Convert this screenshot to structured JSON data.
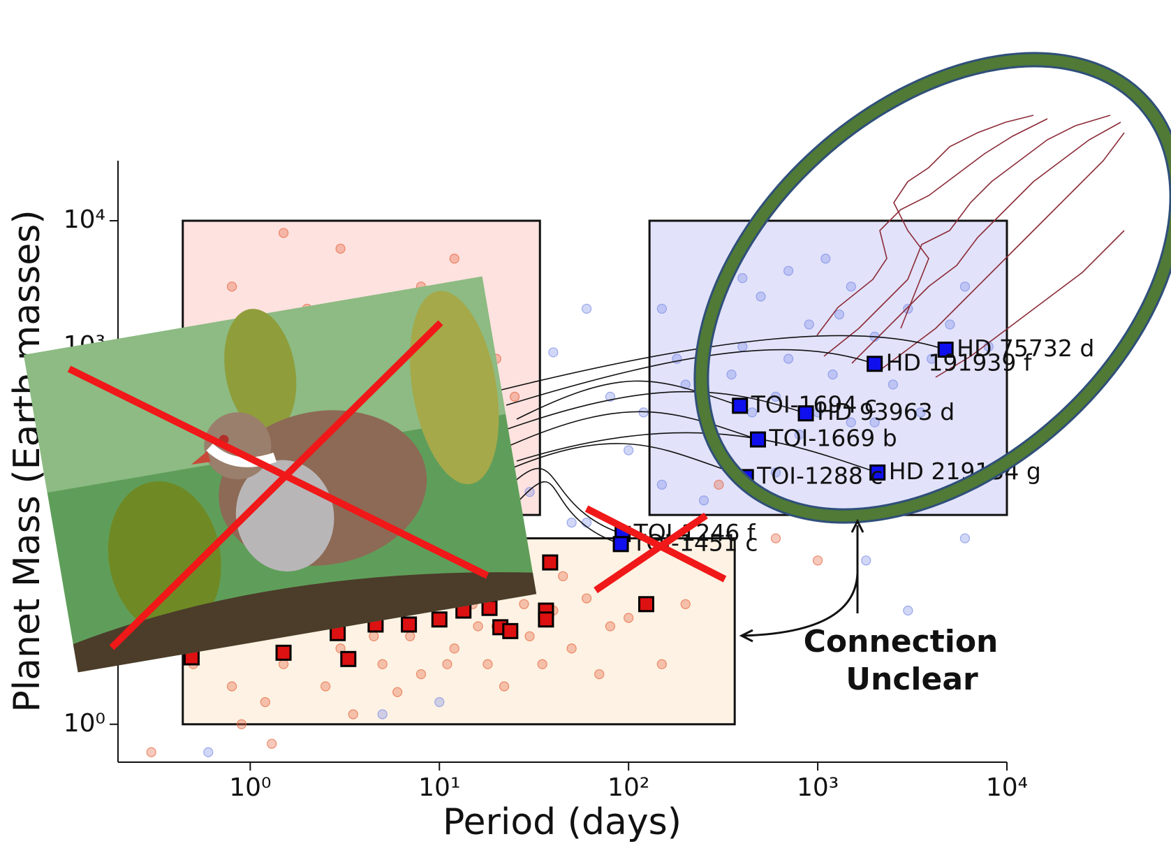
{
  "chart_data": {
    "type": "scatter",
    "xlabel": "Period (days)",
    "ylabel": "Planet Mass (Earth masses)",
    "xscale": "log",
    "yscale": "log",
    "xlim": [
      0.2,
      10000
    ],
    "ylim": [
      0.5,
      30000
    ],
    "xticks": [
      {
        "value": 1,
        "label": "10⁰"
      },
      {
        "value": 10,
        "label": "10¹"
      },
      {
        "value": 100,
        "label": "10²"
      },
      {
        "value": 1000,
        "label": "10³"
      },
      {
        "value": 10000,
        "label": "10⁴"
      }
    ],
    "yticks": [
      {
        "value": 1,
        "label": "10⁰"
      },
      {
        "value": 1000,
        "label": "10³"
      },
      {
        "value": 10000,
        "label": "10⁴"
      }
    ],
    "regions": [
      {
        "xlim": [
          0.44,
          34
        ],
        "ylim": [
          46,
          10000
        ],
        "color": "#fde2df"
      },
      {
        "xlim": [
          129,
          10000
        ],
        "ylim": [
          46,
          10000
        ],
        "color": "#e2e2fa"
      },
      {
        "xlim": [
          0.44,
          364
        ],
        "ylim": [
          1,
          30
        ],
        "color": "#fdf2e3"
      }
    ],
    "series": [
      {
        "marker": "circle",
        "color": "#7b8be6",
        "x": [
          150,
          200,
          300,
          400,
          500,
          600,
          700,
          900,
          1200,
          1500,
          2000,
          2500,
          3000,
          4000,
          5000,
          6000,
          800,
          300,
          1000,
          2000,
          180,
          250,
          350,
          450,
          700,
          1100,
          1500,
          3500,
          8000,
          120,
          60,
          40,
          80,
          100,
          30,
          20,
          50,
          150,
          250,
          600,
          1800,
          3000,
          800,
          6000,
          0.6,
          5,
          10,
          60,
          400,
          1300
        ],
        "y": [
          2000,
          500,
          3000,
          1000,
          2500,
          400,
          800,
          1500,
          600,
          3000,
          1200,
          500,
          2000,
          800,
          1500,
          3000,
          200,
          150,
          300,
          250,
          800,
          1200,
          600,
          300,
          4000,
          5000,
          250,
          300,
          1000,
          300,
          2000,
          900,
          400,
          150,
          70,
          60,
          40,
          80,
          60,
          100,
          20,
          8,
          50,
          30,
          0.6,
          1.2,
          1.5,
          40,
          3500,
          1800
        ]
      },
      {
        "marker": "circle",
        "color": "#e5653f",
        "x": [
          0.5,
          0.8,
          1,
          1.5,
          2,
          2.5,
          3,
          4,
          5,
          6,
          7,
          8,
          10,
          12,
          15,
          18,
          20,
          25,
          30,
          40,
          50,
          60,
          80,
          100,
          150,
          200,
          0.7,
          1.2,
          3.5,
          6,
          9,
          14,
          22,
          35,
          70,
          0.9,
          1.8,
          4.5,
          11,
          16,
          28,
          45,
          2,
          1.5,
          2,
          3,
          5,
          8,
          12,
          20,
          25,
          0.8,
          1.3,
          1.4,
          4,
          300,
          600,
          1000,
          0.3,
          1.3
        ],
        "y": [
          3,
          2,
          5,
          3,
          6,
          2,
          4,
          8,
          3,
          10,
          5,
          2.5,
          7,
          4,
          9,
          3,
          6,
          12,
          5,
          8,
          4,
          10,
          6,
          7,
          3,
          9,
          8,
          1.5,
          1.2,
          1.8,
          12,
          15,
          2,
          3,
          2.5,
          1,
          7,
          5,
          3,
          6,
          9,
          15,
          14,
          8000,
          2000,
          6000,
          1500,
          3000,
          5000,
          800,
          400,
          3000,
          1000,
          400,
          1200,
          80,
          30,
          20,
          0.6,
          0.7
        ]
      },
      {
        "marker": "square",
        "color": "#dd1111",
        "x": [
          38.5,
          124,
          0.49,
          1.5,
          3.3,
          2.9,
          4.6,
          6.9,
          10,
          13.4,
          18.4,
          21,
          23.7,
          36.6,
          36.6
        ],
        "y": [
          19.3,
          9,
          3.4,
          3.7,
          3.3,
          5.3,
          6.2,
          6.2,
          6.8,
          8,
          8.4,
          5.9,
          5.5,
          8,
          6.8
        ]
      },
      {
        "marker": "square",
        "color": "#1010ee",
        "x": [
          4740,
          2000,
          388,
          865,
          483,
          2070,
          417,
          93,
          91
        ],
        "y": [
          946,
          730,
          339,
          295,
          183,
          100,
          92,
          32.5,
          27
        ],
        "labels": [
          "HD 75732 d",
          "HD 191939 f",
          "TOI-1694 c",
          "HD 93963 d",
          "TOI-1669 b",
          "HD 219134 g",
          "TOI-1288 c",
          "TOI-1246 f",
          "TOI-1451 c"
        ]
      }
    ],
    "annotation": [
      "Connection",
      "Unclear"
    ]
  }
}
